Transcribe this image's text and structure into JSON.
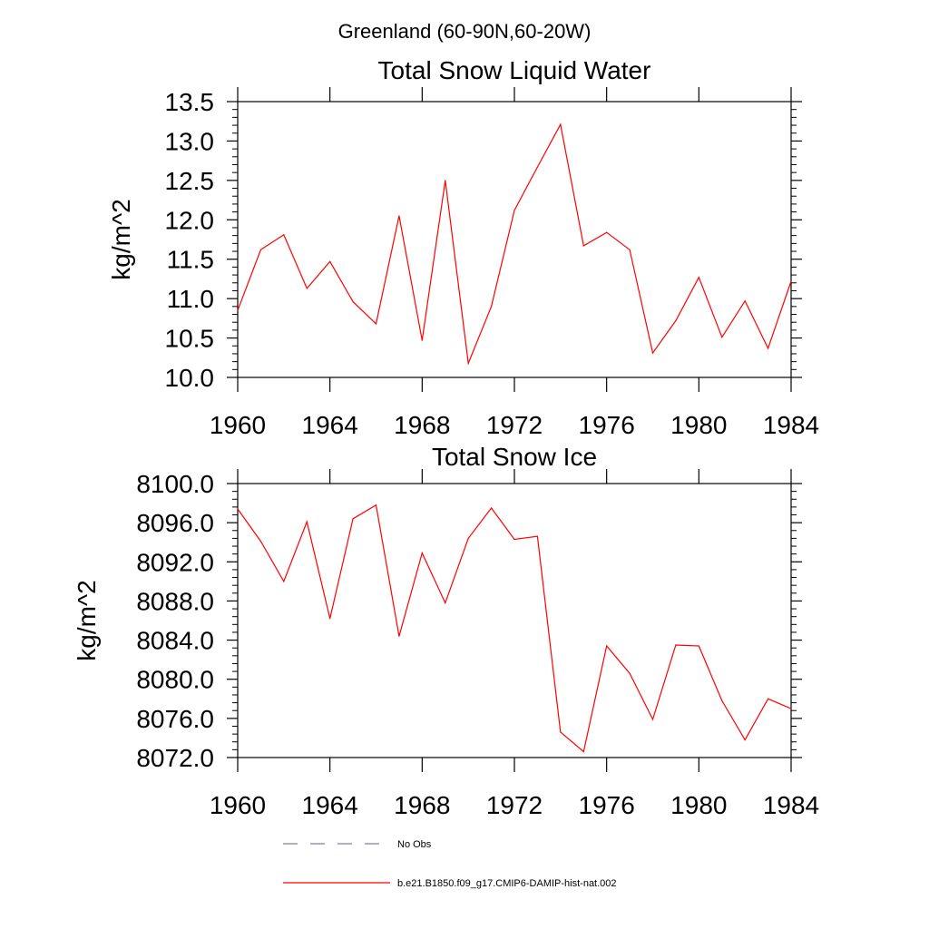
{
  "figure_title": "Greenland (60-90N,60-20W)",
  "chart_data": [
    {
      "type": "line",
      "title": "Total Snow Liquid Water",
      "ylabel": "kg/m^2",
      "xlabel": "",
      "xlim": [
        1960,
        1984
      ],
      "ylim": [
        10.0,
        13.5
      ],
      "xticks": [
        "1960",
        "1964",
        "1968",
        "1972",
        "1976",
        "1980",
        "1984"
      ],
      "yticks": [
        "10.0",
        "10.5",
        "11.0",
        "11.5",
        "12.0",
        "12.5",
        "13.0",
        "13.5"
      ],
      "x": [
        1960,
        1961,
        1962,
        1963,
        1964,
        1965,
        1966,
        1967,
        1968,
        1969,
        1970,
        1971,
        1972,
        1973,
        1974,
        1975,
        1976,
        1977,
        1978,
        1979,
        1980,
        1981,
        1982,
        1983,
        1984
      ],
      "series": [
        {
          "name": "b.e21.B1850.f09_g17.CMIP6-DAMIP-hist-nat.002",
          "color": "#ff0000",
          "values": [
            10.85,
            11.62,
            11.81,
            11.13,
            11.47,
            10.96,
            10.68,
            12.05,
            10.47,
            12.5,
            10.18,
            10.9,
            12.12,
            12.67,
            13.21,
            11.67,
            11.84,
            11.62,
            10.31,
            10.72,
            11.27,
            10.51,
            10.97,
            10.37,
            11.22
          ]
        }
      ]
    },
    {
      "type": "line",
      "title": "Total Snow Ice",
      "ylabel": "kg/m^2",
      "xlabel": "",
      "xlim": [
        1960,
        1984
      ],
      "ylim": [
        8072.0,
        8100.0
      ],
      "xticks": [
        "1960",
        "1964",
        "1968",
        "1972",
        "1976",
        "1980",
        "1984"
      ],
      "yticks": [
        "8072.0",
        "8076.0",
        "8080.0",
        "8084.0",
        "8088.0",
        "8092.0",
        "8096.0",
        "8100.0"
      ],
      "x": [
        1960,
        1961,
        1962,
        1963,
        1964,
        1965,
        1966,
        1967,
        1968,
        1969,
        1970,
        1971,
        1972,
        1973,
        1974,
        1975,
        1976,
        1977,
        1978,
        1979,
        1980,
        1981,
        1982,
        1983,
        1984
      ],
      "series": [
        {
          "name": "b.e21.B1850.f09_g17.CMIP6-DAMIP-hist-nat.002",
          "color": "#ff0000",
          "values": [
            8097.4,
            8094.1,
            8090.0,
            8096.1,
            8086.2,
            8096.4,
            8097.8,
            8084.4,
            8092.9,
            8087.8,
            8094.4,
            8097.5,
            8094.3,
            8094.6,
            8074.6,
            8072.6,
            8083.4,
            8080.6,
            8075.9,
            8083.5,
            8083.4,
            8077.8,
            8073.8,
            8078.0,
            8077.0
          ]
        }
      ]
    }
  ],
  "legend": {
    "items": [
      {
        "label": "No Obs",
        "color": "#8080a0",
        "style": "dashed"
      },
      {
        "label": "b.e21.B1850.f09_g17.CMIP6-DAMIP-hist-nat.002",
        "color": "#ff0000",
        "style": "solid"
      }
    ]
  }
}
